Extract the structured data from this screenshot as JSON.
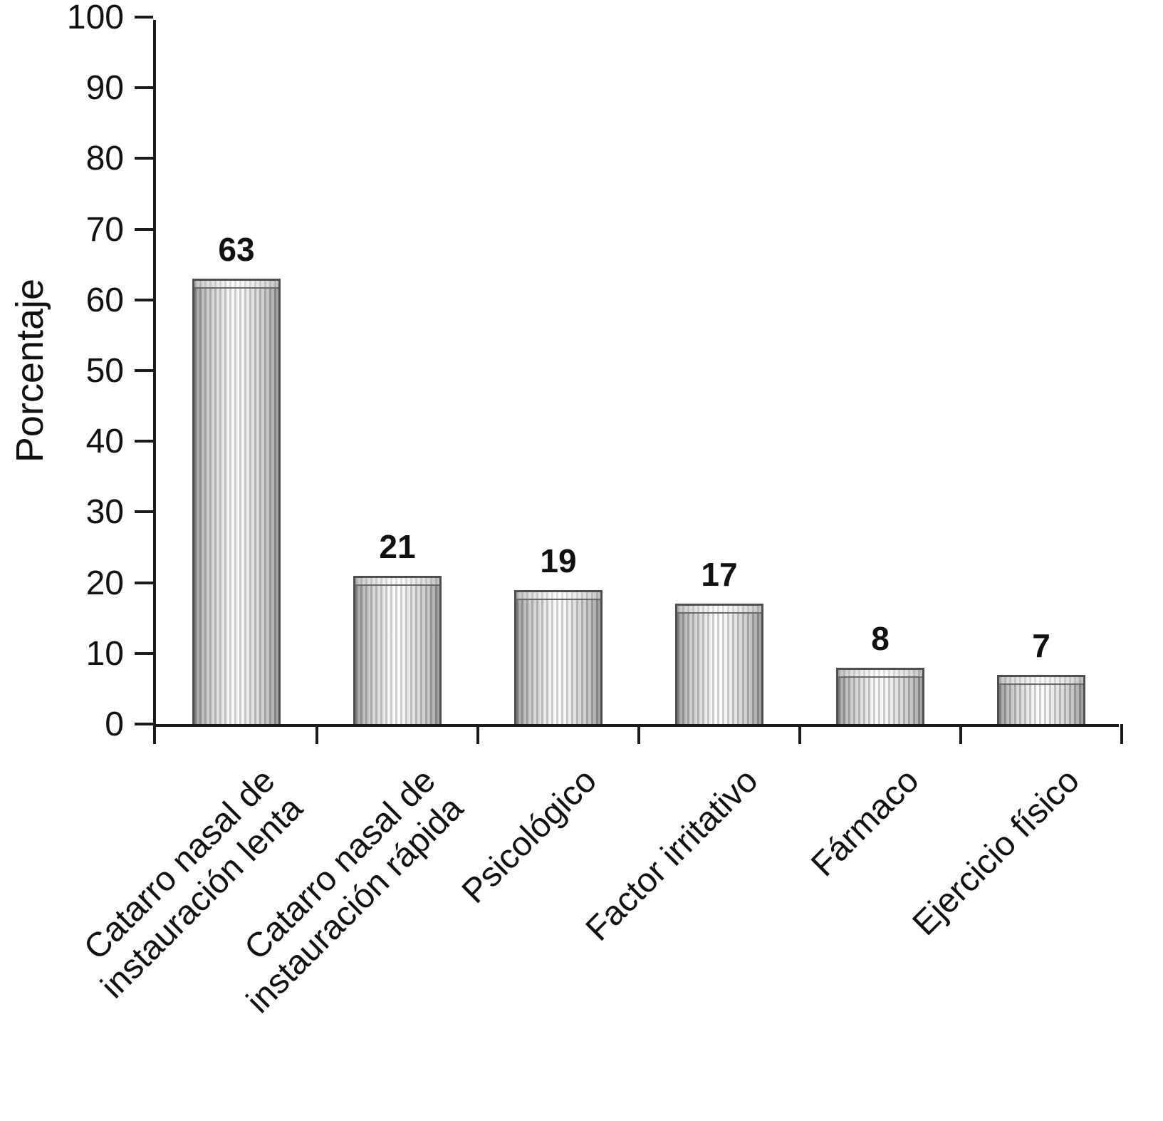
{
  "chart_data": {
    "type": "bar",
    "title": "",
    "xlabel": "",
    "ylabel": "Porcentaje",
    "ylim": [
      0,
      100
    ],
    "ytick_step": 10,
    "grid": false,
    "legend": "none",
    "categories": [
      "Catarro nasal de\ninstauración lenta",
      "Catarro nasal de\ninstauración rápida",
      "Psicológico",
      "Factor irritativo",
      "Fármaco",
      "Ejercicio físico"
    ],
    "values": [
      63,
      21,
      19,
      17,
      8,
      7
    ],
    "value_labels": [
      "63",
      "21",
      "19",
      "17",
      "8",
      "7"
    ],
    "colors": {
      "background": "#ffffff",
      "axis": "#1a1a1a",
      "text": "#111111",
      "bar_edge": "#858585",
      "bar_mid": "#bcbcbc",
      "bar_highlight": "#f8f8f8",
      "bar_border": "#4f4f4f"
    }
  }
}
